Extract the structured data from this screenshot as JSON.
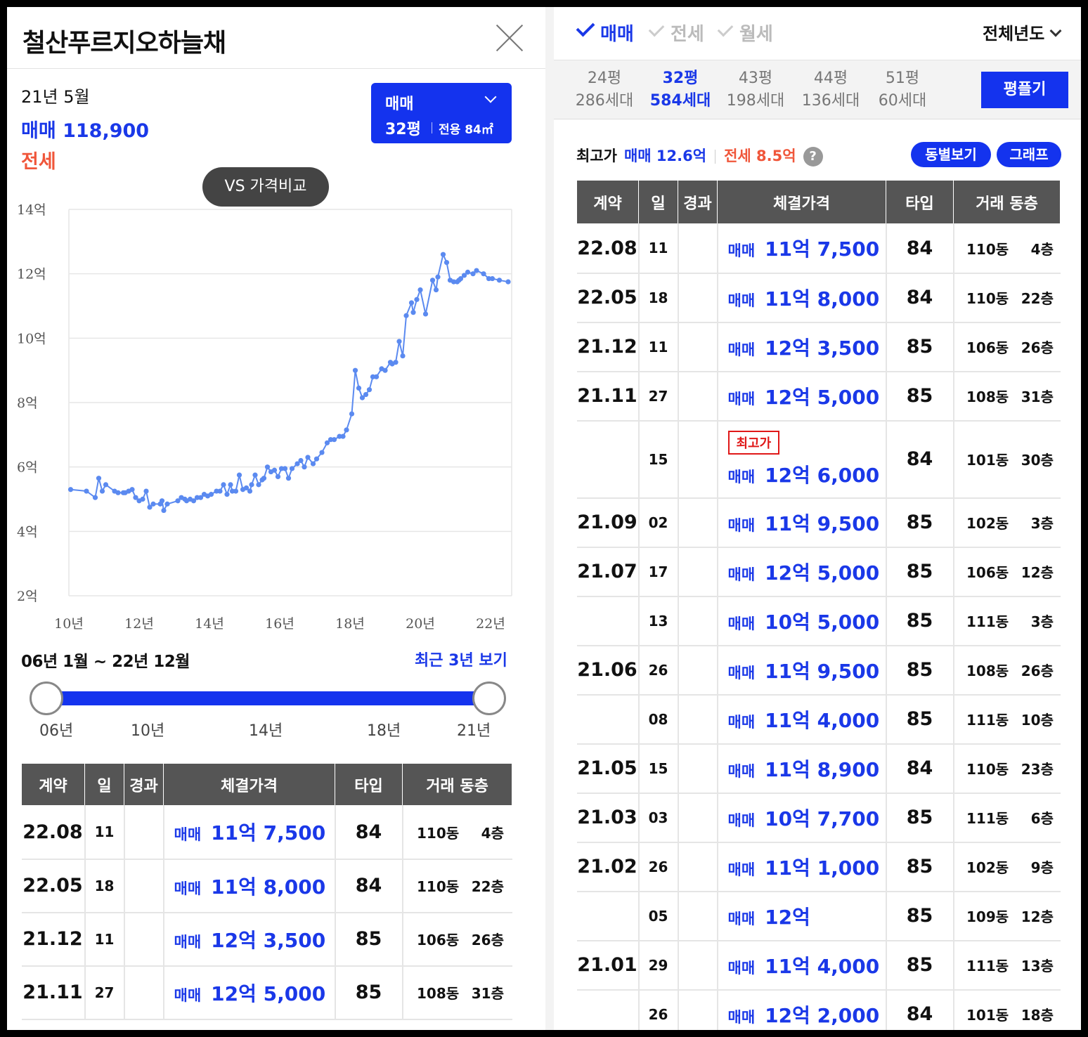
{
  "left": {
    "title": "철산푸르지오하늘채",
    "selected": {
      "date": "21년 5월",
      "sale": "매매 118,900",
      "rent": "전세"
    },
    "type_box": {
      "kind": "매매",
      "size": "32평",
      "area": "전용 84㎡"
    },
    "vs_button": "VS 가격비교",
    "range": {
      "title": "06년 1월 ~ 22년 12월",
      "recent_link": "최근 3년 보기",
      "labels": [
        "06년",
        "10년",
        "14년",
        "18년",
        "21년"
      ]
    },
    "table": {
      "headers": [
        "계약",
        "일",
        "경과",
        "체결가격",
        "타입",
        "거래 동층"
      ],
      "rows": [
        {
          "date": "22.08",
          "day": "11",
          "kind": "매매",
          "price": "11억 7,500",
          "type": "84",
          "dong": "110동",
          "floor": "4층"
        },
        {
          "date": "22.05",
          "day": "18",
          "kind": "매매",
          "price": "11억 8,000",
          "type": "84",
          "dong": "110동",
          "floor": "22층"
        },
        {
          "date": "21.12",
          "day": "11",
          "kind": "매매",
          "price": "12억 3,500",
          "type": "85",
          "dong": "106동",
          "floor": "26층"
        },
        {
          "date": "21.11",
          "day": "27",
          "kind": "매매",
          "price": "12억 5,000",
          "type": "85",
          "dong": "108동",
          "floor": "31층"
        }
      ]
    }
  },
  "chart_data": {
    "type": "scatter",
    "y_unit": "억",
    "ylim": [
      2,
      14
    ],
    "y_ticks": [
      "14억",
      "12억",
      "10억",
      "8억",
      "6억",
      "4억",
      "2억"
    ],
    "x_ticks": [
      "10년",
      "12년",
      "14년",
      "16년",
      "18년",
      "20년",
      "22년"
    ],
    "xlim": [
      2010,
      2022.6
    ],
    "grid": true,
    "series": [
      {
        "color": "#5b8af0",
        "x": [
          2010.05,
          2010.5,
          2010.75,
          2010.85,
          2010.95,
          2011.05,
          2011.3,
          2011.4,
          2011.55,
          2011.6,
          2011.7,
          2011.8,
          2011.9,
          2012.0,
          2012.1,
          2012.2,
          2012.3,
          2012.4,
          2012.6,
          2012.65,
          2012.7,
          2012.8,
          2013.1,
          2013.2,
          2013.3,
          2013.35,
          2013.45,
          2013.55,
          2013.65,
          2013.75,
          2013.85,
          2013.95,
          2014.05,
          2014.2,
          2014.3,
          2014.4,
          2014.5,
          2014.6,
          2014.65,
          2014.75,
          2014.85,
          2014.95,
          2015.05,
          2015.15,
          2015.2,
          2015.3,
          2015.4,
          2015.5,
          2015.55,
          2015.65,
          2015.75,
          2015.85,
          2015.95,
          2016.05,
          2016.15,
          2016.25,
          2016.35,
          2016.5,
          2016.6,
          2016.7,
          2016.8,
          2016.95,
          2017.05,
          2017.2,
          2017.35,
          2017.45,
          2017.55,
          2017.7,
          2017.8,
          2017.9,
          2018.05,
          2018.15,
          2018.25,
          2018.35,
          2018.45,
          2018.55,
          2018.65,
          2018.75,
          2018.9,
          2019.0,
          2019.15,
          2019.2,
          2019.3,
          2019.4,
          2019.5,
          2019.6,
          2019.75,
          2019.8,
          2019.9,
          2020.0,
          2020.15,
          2020.35,
          2020.45,
          2020.5,
          2020.65,
          2020.75,
          2020.85,
          2020.95,
          2021.05,
          2021.1,
          2021.15,
          2021.25,
          2021.35,
          2021.5,
          2021.6,
          2021.8,
          2021.95,
          2022.05,
          2022.25,
          2022.5
        ],
        "y": [
          5.3,
          5.25,
          5.05,
          5.65,
          5.25,
          5.45,
          5.25,
          5.2,
          5.2,
          5.2,
          5.25,
          5.3,
          5.05,
          4.95,
          5.0,
          5.25,
          4.75,
          4.85,
          4.85,
          4.95,
          4.65,
          4.85,
          4.95,
          5.05,
          5.0,
          4.95,
          5.0,
          4.95,
          5.05,
          5.05,
          5.15,
          5.1,
          5.15,
          5.25,
          5.25,
          5.45,
          5.15,
          5.45,
          5.25,
          5.25,
          5.75,
          5.3,
          5.35,
          5.25,
          5.45,
          5.75,
          5.45,
          5.6,
          5.65,
          6.0,
          5.85,
          5.9,
          5.7,
          5.95,
          5.95,
          5.65,
          5.95,
          6.1,
          6.2,
          6.0,
          6.3,
          6.1,
          6.25,
          6.45,
          6.75,
          6.85,
          6.85,
          6.95,
          6.95,
          7.15,
          7.65,
          9.0,
          8.45,
          8.15,
          8.25,
          8.4,
          8.8,
          8.8,
          9.05,
          9.0,
          9.25,
          9.2,
          9.25,
          9.9,
          9.45,
          10.7,
          11.1,
          10.8,
          11.2,
          11.5,
          10.75,
          11.8,
          11.5,
          11.9,
          12.6,
          12.35,
          11.8,
          11.75,
          11.75,
          11.8,
          11.85,
          11.95,
          12.05,
          12.0,
          12.1,
          12.0,
          11.85,
          11.85,
          11.8,
          11.75
        ]
      }
    ]
  },
  "right": {
    "tabs": [
      {
        "label": "매매",
        "checked": true
      },
      {
        "label": "전세",
        "checked": false
      },
      {
        "label": "월세",
        "checked": false
      }
    ],
    "year_select": "전체년도",
    "sizes": [
      {
        "pyeong": "24평",
        "units": "286세대",
        "selected": false
      },
      {
        "pyeong": "32평",
        "units": "584세대",
        "selected": true
      },
      {
        "pyeong": "43평",
        "units": "198세대",
        "selected": false
      },
      {
        "pyeong": "44평",
        "units": "136세대",
        "selected": false
      },
      {
        "pyeong": "51평",
        "units": "60세대",
        "selected": false
      }
    ],
    "pyeong_button": "평플기",
    "max_price": {
      "label": "최고가",
      "sale": "매매 12.6억",
      "rent": "전세 8.5억",
      "help": "?"
    },
    "dong_button": "동별보기",
    "graph_button": "그래프",
    "table": {
      "headers": [
        "계약",
        "일",
        "경과",
        "체결가격",
        "타입",
        "거래 동층"
      ],
      "rows": [
        {
          "date": "22.08",
          "day": "11",
          "kind": "매매",
          "price": "11억 7,500",
          "type": "84",
          "dong": "110동",
          "floor": "4층"
        },
        {
          "date": "22.05",
          "day": "18",
          "kind": "매매",
          "price": "11억 8,000",
          "type": "84",
          "dong": "110동",
          "floor": "22층"
        },
        {
          "date": "21.12",
          "day": "11",
          "kind": "매매",
          "price": "12억 3,500",
          "type": "85",
          "dong": "106동",
          "floor": "26층"
        },
        {
          "date": "21.11",
          "day": "27",
          "kind": "매매",
          "price": "12억 5,000",
          "type": "85",
          "dong": "108동",
          "floor": "31층"
        },
        {
          "date": "",
          "day": "15",
          "kind": "매매",
          "price": "12억 6,000",
          "type": "84",
          "dong": "101동",
          "floor": "30층",
          "badge": "최고가"
        },
        {
          "date": "21.09",
          "day": "02",
          "kind": "매매",
          "price": "11억 9,500",
          "type": "85",
          "dong": "102동",
          "floor": "3층"
        },
        {
          "date": "21.07",
          "day": "17",
          "kind": "매매",
          "price": "12억 5,000",
          "type": "85",
          "dong": "106동",
          "floor": "12층"
        },
        {
          "date": "",
          "day": "13",
          "kind": "매매",
          "price": "10억 5,000",
          "type": "85",
          "dong": "111동",
          "floor": "3층"
        },
        {
          "date": "21.06",
          "day": "26",
          "kind": "매매",
          "price": "11억 9,500",
          "type": "85",
          "dong": "108동",
          "floor": "26층"
        },
        {
          "date": "",
          "day": "08",
          "kind": "매매",
          "price": "11억 4,000",
          "type": "85",
          "dong": "111동",
          "floor": "10층"
        },
        {
          "date": "21.05",
          "day": "15",
          "kind": "매매",
          "price": "11억 8,900",
          "type": "84",
          "dong": "110동",
          "floor": "23층"
        },
        {
          "date": "21.03",
          "day": "03",
          "kind": "매매",
          "price": "10억 7,700",
          "type": "85",
          "dong": "111동",
          "floor": "6층"
        },
        {
          "date": "21.02",
          "day": "26",
          "kind": "매매",
          "price": "11억 1,000",
          "type": "85",
          "dong": "102동",
          "floor": "9층"
        },
        {
          "date": "",
          "day": "05",
          "kind": "매매",
          "price": "12억",
          "type": "85",
          "dong": "109동",
          "floor": "12층"
        },
        {
          "date": "21.01",
          "day": "29",
          "kind": "매매",
          "price": "11억 4,000",
          "type": "85",
          "dong": "111동",
          "floor": "13층"
        },
        {
          "date": "",
          "day": "26",
          "kind": "매매",
          "price": "12억 2,000",
          "type": "84",
          "dong": "101동",
          "floor": "18층"
        }
      ]
    }
  }
}
